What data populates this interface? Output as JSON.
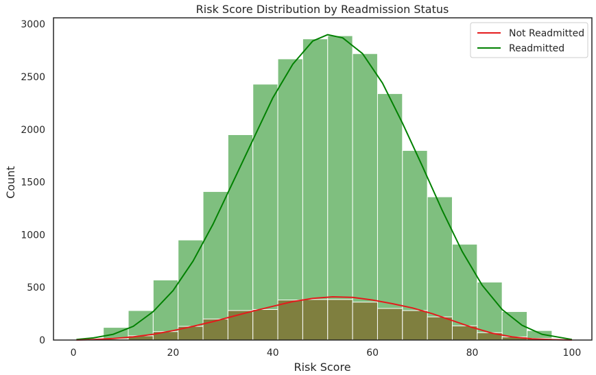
{
  "chart_data": {
    "type": "histogram",
    "title": "Risk Score Distribution by Readmission Status",
    "xlabel": "Risk Score",
    "ylabel": "Count",
    "xlim": [
      -4,
      104
    ],
    "ylim": [
      0,
      3060
    ],
    "xticks": [
      0,
      20,
      40,
      60,
      80,
      100
    ],
    "yticks": [
      0,
      500,
      1000,
      1500,
      2000,
      2500,
      3000
    ],
    "bin_edges": [
      6,
      11,
      16,
      21,
      26,
      31,
      36,
      41,
      46,
      51,
      56,
      61,
      66,
      71,
      76,
      81,
      86,
      91,
      96
    ],
    "grid": false,
    "legend_position": "top-right",
    "colors": {
      "readmitted_bar": "#7fbf7f",
      "overlap_bar": "#7f7f3f",
      "readmitted_line": "#008000",
      "not_readmitted_line": "#e41a1c",
      "bar_edge": "#ffffff",
      "axis_frame": "#262626"
    },
    "series": [
      {
        "name": "Not Readmitted",
        "counts": [
          10,
          40,
          80,
          130,
          200,
          280,
          290,
          380,
          385,
          385,
          360,
          300,
          280,
          220,
          135,
          70,
          30,
          15
        ],
        "kde": [
          [
            0.6,
            0
          ],
          [
            4,
            5
          ],
          [
            8,
            15
          ],
          [
            12,
            30
          ],
          [
            16,
            55
          ],
          [
            20,
            90
          ],
          [
            24,
            130
          ],
          [
            28,
            175
          ],
          [
            32,
            225
          ],
          [
            36,
            275
          ],
          [
            40,
            320
          ],
          [
            44,
            365
          ],
          [
            48,
            395
          ],
          [
            52,
            410
          ],
          [
            56,
            405
          ],
          [
            60,
            380
          ],
          [
            64,
            345
          ],
          [
            68,
            305
          ],
          [
            72,
            250
          ],
          [
            76,
            185
          ],
          [
            80,
            120
          ],
          [
            84,
            65
          ],
          [
            88,
            30
          ],
          [
            92,
            12
          ],
          [
            96,
            4
          ],
          [
            100,
            0
          ]
        ]
      },
      {
        "name": "Readmitted",
        "counts": [
          120,
          280,
          570,
          950,
          1410,
          1950,
          2430,
          2670,
          2860,
          2890,
          2720,
          2340,
          1800,
          1360,
          910,
          550,
          270,
          90
        ],
        "kde": [
          [
            0.6,
            5
          ],
          [
            4,
            20
          ],
          [
            8,
            55
          ],
          [
            12,
            130
          ],
          [
            16,
            270
          ],
          [
            20,
            470
          ],
          [
            24,
            750
          ],
          [
            28,
            1100
          ],
          [
            32,
            1500
          ],
          [
            36,
            1900
          ],
          [
            40,
            2300
          ],
          [
            44,
            2620
          ],
          [
            48,
            2840
          ],
          [
            51,
            2900
          ],
          [
            54,
            2870
          ],
          [
            58,
            2720
          ],
          [
            62,
            2440
          ],
          [
            66,
            2060
          ],
          [
            70,
            1650
          ],
          [
            74,
            1230
          ],
          [
            78,
            840
          ],
          [
            82,
            520
          ],
          [
            86,
            290
          ],
          [
            90,
            140
          ],
          [
            94,
            55
          ],
          [
            100,
            5
          ]
        ]
      }
    ]
  }
}
